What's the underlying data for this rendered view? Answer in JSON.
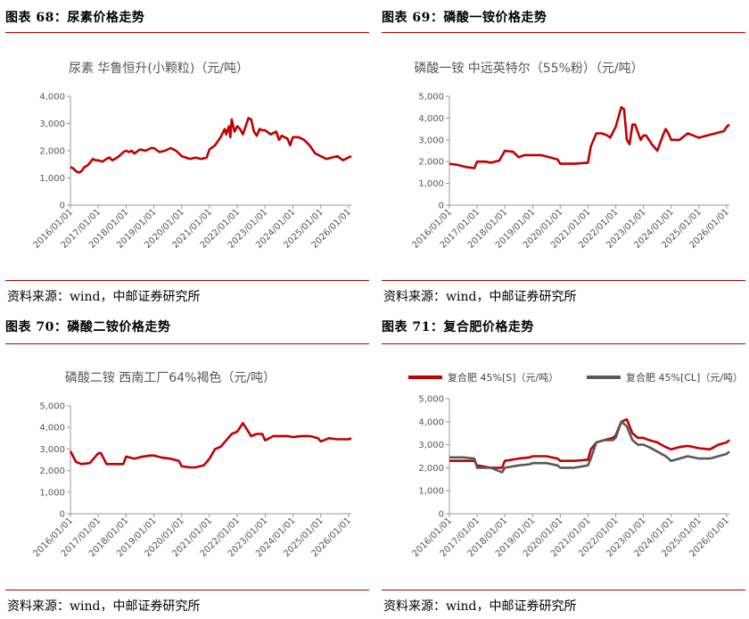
{
  "panels": [
    {
      "header": "图表 68：尿素价格走势",
      "source": "资料来源：wind，中邮证券研究所"
    },
    {
      "header": "图表 69：磷酸一铵价格走势",
      "source": "资料来源：wind，中邮证券研究所"
    },
    {
      "header": "图表 70：磷酸二铵价格走势",
      "source": "资料来源：wind，中邮证券研究所"
    },
    {
      "header": "图表 71：复合肥价格走势",
      "source": "资料来源：wind，中邮证券研究所"
    }
  ],
  "chart_data": [
    {
      "type": "line",
      "title": "尿素 华鲁恒升(小颗粒)（元/吨）",
      "x_ticks": [
        "2016/01/01",
        "2017/01/01",
        "2018/01/01",
        "2019/01/01",
        "2020/01/01",
        "2021/01/01",
        "2022/01/01",
        "2023/01/01",
        "2024/01/01",
        "2025/01/01",
        "2026/01/01"
      ],
      "y_ticks": [
        "0",
        "1,000",
        "2,000",
        "3,000",
        "4,000"
      ],
      "ylim": [
        0,
        4000
      ],
      "xlim": [
        2016.0,
        2026.1
      ],
      "series": [
        {
          "name": "",
          "color": "#c00000",
          "x": [
            2016.0,
            2016.1,
            2016.2,
            2016.3,
            2016.4,
            2016.5,
            2016.6,
            2016.7,
            2016.8,
            2016.9,
            2017.0,
            2017.15,
            2017.3,
            2017.4,
            2017.5,
            2017.6,
            2017.75,
            2017.9,
            2018.0,
            2018.1,
            2018.2,
            2018.3,
            2018.5,
            2018.7,
            2018.9,
            2019.0,
            2019.2,
            2019.4,
            2019.6,
            2019.8,
            2020.0,
            2020.15,
            2020.3,
            2020.5,
            2020.7,
            2020.9,
            2021.0,
            2021.2,
            2021.4,
            2021.55,
            2021.6,
            2021.7,
            2021.75,
            2021.8,
            2021.9,
            2022.0,
            2022.1,
            2022.2,
            2022.3,
            2022.4,
            2022.5,
            2022.6,
            2022.7,
            2022.8,
            2022.9,
            2023.0,
            2023.2,
            2023.4,
            2023.5,
            2023.6,
            2023.7,
            2023.8,
            2023.9,
            2024.0,
            2024.2,
            2024.4,
            2024.6,
            2024.8,
            2025.0,
            2025.2,
            2025.4,
            2025.6,
            2025.8,
            2026.0,
            2026.1
          ],
          "y": [
            1400,
            1350,
            1250,
            1200,
            1250,
            1400,
            1450,
            1550,
            1700,
            1650,
            1650,
            1600,
            1700,
            1750,
            1650,
            1700,
            1800,
            1950,
            2000,
            1950,
            2000,
            1900,
            2050,
            2000,
            2100,
            2100,
            1950,
            2000,
            2100,
            2000,
            1800,
            1750,
            1700,
            1750,
            1700,
            1750,
            2050,
            2200,
            2500,
            2800,
            2600,
            2900,
            2500,
            3150,
            2700,
            2900,
            2800,
            2600,
            2900,
            3200,
            3150,
            2700,
            2550,
            2800,
            2750,
            2750,
            2600,
            2700,
            2400,
            2550,
            2500,
            2450,
            2200,
            2500,
            2500,
            2400,
            2200,
            1900,
            1800,
            1700,
            1750,
            1800,
            1650,
            1750,
            1800
          ]
        }
      ]
    },
    {
      "type": "line",
      "title": "磷酸一铵 中远英特尔（55%粉）（元/吨）",
      "x_ticks": [
        "2016/01/01",
        "2017/01/01",
        "2018/01/01",
        "2019/01/01",
        "2020/01/01",
        "2021/01/01",
        "2022/01/01",
        "2023/01/01",
        "2024/01/01",
        "2025/01/01",
        "2026/01/01"
      ],
      "y_ticks": [
        "0",
        "1,000",
        "2,000",
        "3,000",
        "4,000",
        "5,000"
      ],
      "ylim": [
        0,
        5000
      ],
      "xlim": [
        2016.0,
        2026.1
      ],
      "series": [
        {
          "name": "",
          "color": "#c00000",
          "x": [
            2016.0,
            2016.3,
            2016.6,
            2016.9,
            2017.0,
            2017.3,
            2017.5,
            2017.8,
            2018.0,
            2018.3,
            2018.5,
            2018.7,
            2019.0,
            2019.3,
            2019.6,
            2019.9,
            2020.0,
            2020.5,
            2021.0,
            2021.1,
            2021.3,
            2021.5,
            2021.7,
            2021.8,
            2022.0,
            2022.2,
            2022.3,
            2022.4,
            2022.5,
            2022.6,
            2022.7,
            2022.9,
            2023.0,
            2023.1,
            2023.3,
            2023.5,
            2023.7,
            2023.8,
            2023.9,
            2024.0,
            2024.3,
            2024.6,
            2025.0,
            2025.3,
            2025.6,
            2025.9,
            2026.0,
            2026.1
          ],
          "y": [
            1900,
            1850,
            1750,
            1700,
            2000,
            2000,
            1950,
            2050,
            2500,
            2450,
            2200,
            2300,
            2300,
            2300,
            2200,
            2100,
            1900,
            1900,
            1950,
            2700,
            3300,
            3300,
            3200,
            3100,
            3600,
            4500,
            4400,
            3000,
            2800,
            3700,
            3700,
            3000,
            3200,
            3200,
            2800,
            2500,
            3200,
            3500,
            3300,
            3000,
            3000,
            3300,
            3100,
            3200,
            3300,
            3400,
            3600,
            3700
          ]
        }
      ]
    },
    {
      "type": "line",
      "title": "磷酸二铵 西南工厂64%褐色（元/吨）",
      "x_ticks": [
        "2016/01/01",
        "2017/01/01",
        "2018/01/01",
        "2019/01/01",
        "2020/01/01",
        "2021/01/01",
        "2022/01/01",
        "2023/01/01",
        "2024/01/01",
        "2025/01/01",
        "2026/01/01"
      ],
      "y_ticks": [
        "0",
        "1,000",
        "2,000",
        "3,000",
        "4,000",
        "5,000"
      ],
      "ylim": [
        0,
        5000
      ],
      "xlim": [
        2016.0,
        2026.1
      ],
      "series": [
        {
          "name": "",
          "color": "#c00000",
          "x": [
            2016.0,
            2016.2,
            2016.4,
            2016.7,
            2017.0,
            2017.1,
            2017.3,
            2017.5,
            2017.9,
            2018.0,
            2018.3,
            2018.6,
            2018.9,
            2019.0,
            2019.3,
            2019.6,
            2019.9,
            2020.0,
            2020.3,
            2020.5,
            2020.8,
            2021.0,
            2021.2,
            2021.4,
            2021.6,
            2021.8,
            2022.0,
            2022.2,
            2022.3,
            2022.5,
            2022.7,
            2022.9,
            2023.0,
            2023.3,
            2023.6,
            2023.8,
            2024.0,
            2024.3,
            2024.6,
            2024.9,
            2025.0,
            2025.3,
            2025.6,
            2026.0,
            2026.1
          ],
          "y": [
            2900,
            2400,
            2300,
            2350,
            2800,
            2800,
            2300,
            2300,
            2300,
            2650,
            2550,
            2650,
            2700,
            2700,
            2600,
            2550,
            2450,
            2200,
            2150,
            2150,
            2250,
            2550,
            3000,
            3100,
            3400,
            3700,
            3800,
            4200,
            4000,
            3600,
            3700,
            3700,
            3400,
            3600,
            3600,
            3600,
            3550,
            3600,
            3600,
            3500,
            3350,
            3500,
            3450,
            3450,
            3500
          ]
        }
      ]
    },
    {
      "type": "line",
      "title": "",
      "x_ticks": [
        "2016/01/01",
        "2017/01/01",
        "2018/01/01",
        "2019/01/01",
        "2020/01/01",
        "2021/01/01",
        "2022/01/01",
        "2023/01/01",
        "2024/01/01",
        "2025/01/01",
        "2026/01/01"
      ],
      "y_ticks": [
        "0",
        "1,000",
        "2,000",
        "3,000",
        "4,000",
        "5,000"
      ],
      "ylim": [
        0,
        5000
      ],
      "xlim": [
        2016.0,
        2026.1
      ],
      "legend": "top",
      "series": [
        {
          "name": "复合肥 45%[S]（元/吨）",
          "color": "#c00000",
          "x": [
            2016.0,
            2016.5,
            2016.9,
            2017.0,
            2017.5,
            2017.9,
            2018.0,
            2018.5,
            2018.9,
            2019.0,
            2019.5,
            2019.9,
            2020.0,
            2020.5,
            2021.0,
            2021.1,
            2021.3,
            2021.6,
            2021.9,
            2022.0,
            2022.2,
            2022.4,
            2022.6,
            2022.8,
            2023.0,
            2023.2,
            2023.5,
            2023.8,
            2024.0,
            2024.3,
            2024.6,
            2025.0,
            2025.4,
            2025.7,
            2026.0,
            2026.1
          ],
          "y": [
            2300,
            2300,
            2300,
            2100,
            2000,
            2000,
            2300,
            2400,
            2450,
            2500,
            2500,
            2400,
            2300,
            2300,
            2350,
            2800,
            3100,
            3200,
            3300,
            3400,
            4000,
            4100,
            3500,
            3300,
            3300,
            3200,
            3100,
            2900,
            2800,
            2900,
            2950,
            2850,
            2800,
            3000,
            3100,
            3200
          ]
        },
        {
          "name": "复合肥 45%[CL]（元/吨）",
          "color": "#595959",
          "x": [
            2016.0,
            2016.5,
            2016.9,
            2017.0,
            2017.5,
            2017.9,
            2018.0,
            2018.5,
            2018.9,
            2019.0,
            2019.5,
            2019.9,
            2020.0,
            2020.5,
            2021.0,
            2021.1,
            2021.3,
            2021.6,
            2021.9,
            2022.0,
            2022.2,
            2022.4,
            2022.6,
            2022.8,
            2023.0,
            2023.2,
            2023.5,
            2023.8,
            2024.0,
            2024.3,
            2024.6,
            2025.0,
            2025.4,
            2025.7,
            2026.0,
            2026.1
          ],
          "y": [
            2450,
            2450,
            2400,
            2000,
            2000,
            1800,
            2000,
            2100,
            2150,
            2200,
            2200,
            2100,
            2000,
            2000,
            2100,
            2400,
            3100,
            3200,
            3200,
            3300,
            4000,
            3800,
            3200,
            3000,
            3000,
            2900,
            2700,
            2500,
            2300,
            2400,
            2500,
            2400,
            2400,
            2500,
            2600,
            2700
          ]
        }
      ]
    }
  ]
}
